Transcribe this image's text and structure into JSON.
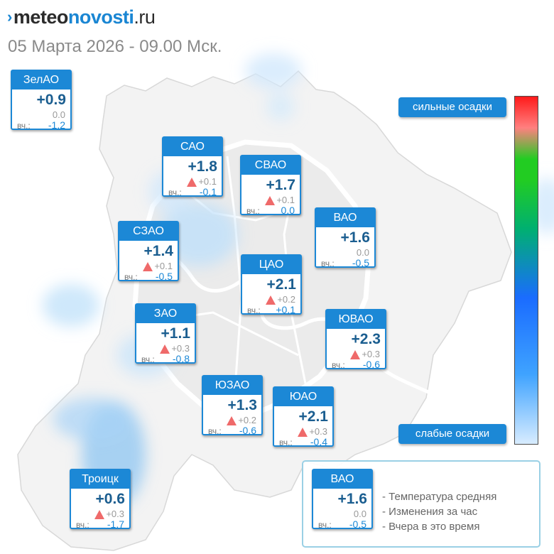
{
  "logo": {
    "mark": "›",
    "part1": "meteo",
    "part2": "novosti",
    "part3": ".ru"
  },
  "datetime": "05 Марта 2026 - 09.00 Мск.",
  "yesterday_label": "вч.:",
  "districts": [
    {
      "name": "ЗелАО",
      "temp": "+0.9",
      "change": "0.0",
      "rising": false,
      "yesterday": "-1.2"
    },
    {
      "name": "САО",
      "temp": "+1.8",
      "change": "+0.1",
      "rising": true,
      "yesterday": "-0.1"
    },
    {
      "name": "СВАО",
      "temp": "+1.7",
      "change": "+0.1",
      "rising": true,
      "yesterday": "0.0"
    },
    {
      "name": "ВАО",
      "temp": "+1.6",
      "change": "0.0",
      "rising": false,
      "yesterday": "-0.5"
    },
    {
      "name": "СЗАО",
      "temp": "+1.4",
      "change": "+0.1",
      "rising": true,
      "yesterday": "-0.5"
    },
    {
      "name": "ЦАО",
      "temp": "+2.1",
      "change": "+0.2",
      "rising": true,
      "yesterday": "+0.1"
    },
    {
      "name": "ЗАО",
      "temp": "+1.1",
      "change": "+0.3",
      "rising": true,
      "yesterday": "-0.8"
    },
    {
      "name": "ЮВАО",
      "temp": "+2.3",
      "change": "+0.3",
      "rising": true,
      "yesterday": "-0.6"
    },
    {
      "name": "ЮЗАО",
      "temp": "+1.3",
      "change": "+0.2",
      "rising": true,
      "yesterday": "-0.6"
    },
    {
      "name": "ЮАО",
      "temp": "+2.1",
      "change": "+0.3",
      "rising": true,
      "yesterday": "-0.4"
    },
    {
      "name": "Троицк",
      "temp": "+0.6",
      "change": "+0.3",
      "rising": true,
      "yesterday": "-1.7"
    }
  ],
  "precip_scale": {
    "strong_label": "сильные осадки",
    "weak_label": "слабые осадки",
    "colors": [
      "#ff1a1a",
      "#ff8080",
      "#22cc22",
      "#00b070",
      "#1a6cff",
      "#3fa3ff",
      "#d8ecff"
    ]
  },
  "legend": {
    "sample": {
      "name": "ВАО",
      "temp": "+1.6",
      "change": "0.0",
      "rising": false,
      "yesterday": "-0.5"
    },
    "items": [
      "- Температура средняя",
      "- Изменения за час",
      "- Вчера в это время"
    ]
  },
  "colors": {
    "accent": "#1c88d6",
    "temp_text": "#1b5e90",
    "rise_arrow": "#ef6a6a"
  }
}
